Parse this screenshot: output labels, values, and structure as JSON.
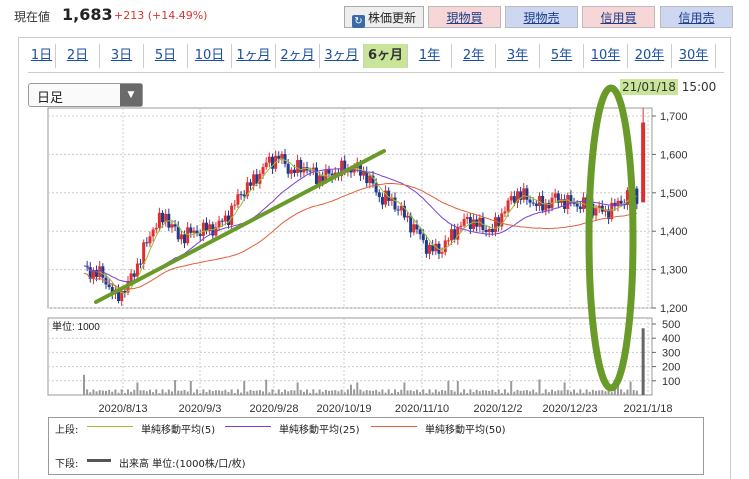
{
  "header": {
    "price_label": "現在値",
    "price_value": "1,683",
    "price_change": "+213 (+14.49%)",
    "buttons": {
      "refresh": "株価更新",
      "spot_buy": "現物買",
      "spot_sell": "現物売",
      "margin_buy": "信用買",
      "margin_sell": "信用売"
    }
  },
  "range_tabs": [
    "1日",
    "2日",
    "3日",
    "5日",
    "10日",
    "1ヶ月",
    "2ヶ月",
    "3ヶ月",
    "6ヶ月",
    "1年",
    "2年",
    "3年",
    "5年",
    "10年",
    "20年",
    "30年"
  ],
  "active_tab": "6ヶ月",
  "period_select": {
    "value": "日足"
  },
  "last_date": "21/01/18",
  "last_time": "15:00",
  "colors": {
    "up": "#e02e2e",
    "down": "#1f3a8a",
    "ma5": "#9bbf3a",
    "ma25": "#7a3fd0",
    "ma50": "#e0603a",
    "volume": "#9a9a9a",
    "annotation": "#6a9a2a",
    "active_tab": "#c8e59a"
  },
  "chart_data": {
    "type": "candlestick",
    "price_axis": {
      "ticks": [
        "1,700",
        "1,600",
        "1,500",
        "1,400",
        "1,300",
        "1,200"
      ],
      "range": [
        1200,
        1700
      ]
    },
    "volume_axis": {
      "unit_label": "単位: 1000",
      "ticks": [
        "500",
        "400",
        "300",
        "200",
        "100"
      ],
      "range": [
        0,
        500
      ]
    },
    "x_labels": [
      "2020/8/13",
      "2020/9/3",
      "2020/9/28",
      "2020/10/19",
      "2020/11/10",
      "2020/12/2",
      "2020/12/23",
      "2021/1/18"
    ],
    "last_close": 1683,
    "last_high": 1720,
    "last_low": 1490,
    "last_volume": 470
  },
  "legend": {
    "upper_label": "上段:",
    "lower_label": "下段:",
    "ma5": "単純移動平均(5)",
    "ma25": "単純移動平均(25)",
    "ma50": "単純移動平均(50)",
    "volume": "出来高 単位:(1000株/口/枚)"
  }
}
